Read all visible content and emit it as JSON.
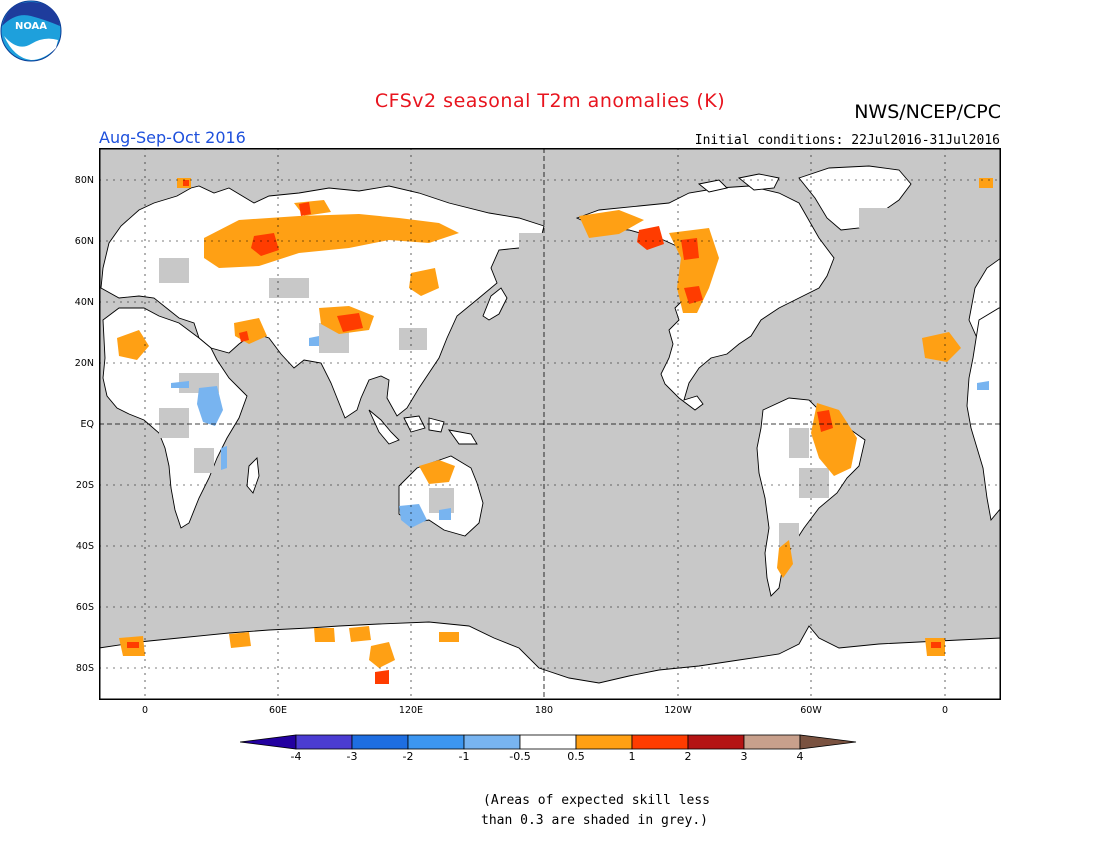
{
  "header": {
    "title": "CFSv2 seasonal T2m anomalies (K)",
    "agency": "NWS/NCEP/CPC",
    "logo_text": "NOAA",
    "period": "Aug-Sep-Oct 2016",
    "initial_conditions": "Initial conditions: 22Jul2016-31Jul2016"
  },
  "map": {
    "lat_labels": [
      "80N",
      "60N",
      "40N",
      "20N",
      "EQ",
      "20S",
      "40S",
      "60S",
      "80S"
    ],
    "lon_labels": [
      "0",
      "60E",
      "120E",
      "180",
      "120W",
      "60W",
      "0"
    ],
    "land_color": "#ffffff",
    "ocean_low_skill_color": "#c8c8c8"
  },
  "legend": {
    "labels": [
      "-4",
      "-3",
      "-2",
      "-1",
      "-0.5",
      "0.5",
      "1",
      "2",
      "3",
      "4"
    ],
    "colors": [
      "#2300a0",
      "#4b3cd2",
      "#1e6ee1",
      "#3c96f0",
      "#78b4f0",
      "#ffffff",
      "#ffa014",
      "#ff3c00",
      "#b41414",
      "#c8a08c",
      "#7a5240"
    ]
  },
  "note": {
    "line1": "(Areas of expected skill less",
    "line2": "than 0.3 are shaded in grey.)"
  }
}
